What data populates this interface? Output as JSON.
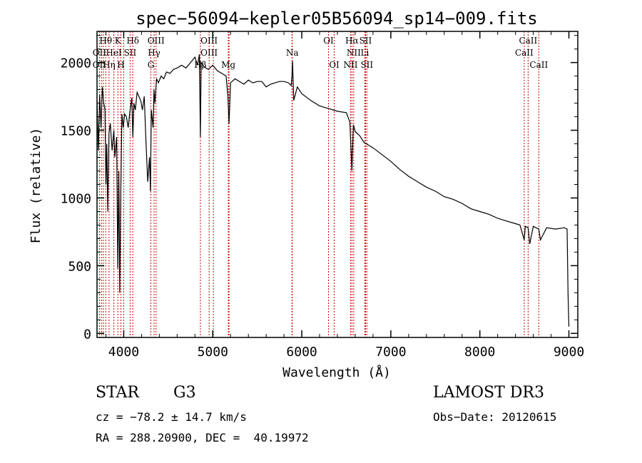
{
  "chart_data": {
    "type": "line",
    "title": "spec−56094−kepler05B56094_sp14−009.fits",
    "xlabel": "Wavelength (Å)",
    "ylabel": "Flux (relative)",
    "xlim": [
      3700,
      9100
    ],
    "ylim": [
      -30,
      2230
    ],
    "x_ticks": [
      4000,
      5000,
      6000,
      7000,
      8000,
      9000
    ],
    "y_ticks": [
      0,
      500,
      1000,
      1500,
      2000
    ],
    "series": [
      {
        "name": "flux",
        "x": [
          3700,
          3715,
          3730,
          3745,
          3760,
          3775,
          3790,
          3800,
          3810,
          3820,
          3835,
          3850,
          3870,
          3889,
          3900,
          3920,
          3933,
          3945,
          3955,
          3968,
          3980,
          3995,
          4010,
          4030,
          4050,
          4070,
          4090,
          4102,
          4115,
          4130,
          4150,
          4170,
          4190,
          4210,
          4230,
          4250,
          4270,
          4290,
          4300,
          4310,
          4330,
          4340,
          4350,
          4370,
          4390,
          4420,
          4450,
          4480,
          4520,
          4560,
          4600,
          4650,
          4700,
          4750,
          4800,
          4830,
          4850,
          4861,
          4870,
          4890,
          4920,
          4950,
          5000,
          5050,
          5100,
          5150,
          5170,
          5183,
          5200,
          5250,
          5300,
          5350,
          5400,
          5450,
          5500,
          5550,
          5600,
          5650,
          5700,
          5750,
          5800,
          5850,
          5880,
          5890,
          5896,
          5910,
          5950,
          6000,
          6100,
          6200,
          6300,
          6400,
          6500,
          6540,
          6563,
          6580,
          6600,
          6650,
          6700,
          6750,
          6800,
          6900,
          7000,
          7100,
          7200,
          7300,
          7400,
          7500,
          7600,
          7700,
          7800,
          7900,
          8000,
          8100,
          8200,
          8300,
          8400,
          8450,
          8498,
          8510,
          8542,
          8560,
          8600,
          8662,
          8680,
          8750,
          8850,
          8950,
          8980,
          8990,
          9000
        ],
        "y": [
          1720,
          1350,
          1760,
          1520,
          1820,
          1700,
          1650,
          1100,
          1400,
          900,
          1480,
          1550,
          1350,
          1500,
          1300,
          1450,
          480,
          1200,
          300,
          1100,
          1620,
          1520,
          1620,
          1600,
          1520,
          1640,
          1740,
          1450,
          1700,
          1650,
          1780,
          1750,
          1720,
          1650,
          1750,
          1420,
          1120,
          1300,
          1050,
          1650,
          1520,
          1800,
          1700,
          1880,
          1850,
          1900,
          1880,
          1930,
          1920,
          1950,
          1960,
          1980,
          1960,
          2000,
          2040,
          1980,
          2060,
          1450,
          2000,
          1980,
          1960,
          1950,
          1980,
          1940,
          1920,
          1900,
          1750,
          1550,
          1850,
          1880,
          1860,
          1840,
          1870,
          1850,
          1860,
          1860,
          1820,
          1840,
          1850,
          1860,
          1860,
          1850,
          1830,
          1900,
          2010,
          1720,
          1820,
          1770,
          1720,
          1680,
          1660,
          1640,
          1630,
          1560,
          1200,
          1540,
          1490,
          1460,
          1410,
          1390,
          1370,
          1320,
          1270,
          1210,
          1160,
          1120,
          1080,
          1050,
          1010,
          990,
          960,
          920,
          900,
          880,
          850,
          830,
          810,
          800,
          690,
          790,
          780,
          660,
          790,
          770,
          690,
          780,
          770,
          780,
          770,
          300,
          50
        ]
      }
    ],
    "spectral_lines": [
      {
        "label": "Hθ",
        "wavelength": 3798,
        "row": 0
      },
      {
        "label": "OII",
        "wavelength": 3727,
        "row": 1
      },
      {
        "label": "OII",
        "wavelength": 3727,
        "row": 2
      },
      {
        "label": "HeI",
        "wavelength": 3889,
        "row": 1
      },
      {
        "label": "Hη",
        "wavelength": 3835,
        "row": 2
      },
      {
        "label": "K",
        "wavelength": 3934,
        "row": 0
      },
      {
        "label": "SII",
        "wavelength": 4072,
        "row": 1
      },
      {
        "label": "H",
        "wavelength": 3968,
        "row": 2
      },
      {
        "label": "Hδ",
        "wavelength": 4102,
        "row": 0
      },
      {
        "label": "OIII",
        "wavelength": 4363,
        "row": 0
      },
      {
        "label": "Hγ",
        "wavelength": 4341,
        "row": 1
      },
      {
        "label": "G",
        "wavelength": 4305,
        "row": 2
      },
      {
        "label": "OIII",
        "wavelength": 4959,
        "row": 0
      },
      {
        "label": "OIII",
        "wavelength": 4959,
        "row": 1
      },
      {
        "label": "Hβ",
        "wavelength": 4861,
        "row": 2
      },
      {
        "label": "Mg",
        "wavelength": 5175,
        "row": 2
      },
      {
        "label": "Na",
        "wavelength": 5893,
        "row": 1
      },
      {
        "label": "OI",
        "wavelength": 6300,
        "row": 0
      },
      {
        "label": "OI",
        "wavelength": 6364,
        "row": 2
      },
      {
        "label": "Hα",
        "wavelength": 6563,
        "row": 0
      },
      {
        "label": "SII",
        "wavelength": 6716,
        "row": 0
      },
      {
        "label": "NII",
        "wavelength": 6583,
        "row": 1
      },
      {
        "label": "Li",
        "wavelength": 6708,
        "row": 1
      },
      {
        "label": "NII",
        "wavelength": 6548,
        "row": 2
      },
      {
        "label": "SII",
        "wavelength": 6731,
        "row": 2
      },
      {
        "label": "CaII",
        "wavelength": 8542,
        "row": 0
      },
      {
        "label": "CaII",
        "wavelength": 8498,
        "row": 1
      },
      {
        "label": "CaII",
        "wavelength": 8662,
        "row": 2
      }
    ],
    "extra_line_markers": [
      3750,
      3771,
      4000,
      4861,
      5007,
      5183,
      5890,
      6300,
      6548,
      6563,
      6583,
      6716,
      6731,
      8498,
      8542,
      8662
    ],
    "colors": {
      "axis": "#000000",
      "flux": "#000000",
      "lines": "#cc0000"
    }
  },
  "info": {
    "object_class": "STAR",
    "subclass": "G3",
    "survey": "LAMOST DR3",
    "redshift": "cz = −78.2 ± 14.7 km/s",
    "obs_date": "Obs−Date: 20120615",
    "coords": "RA = 288.20900, DEC =  40.19972"
  }
}
